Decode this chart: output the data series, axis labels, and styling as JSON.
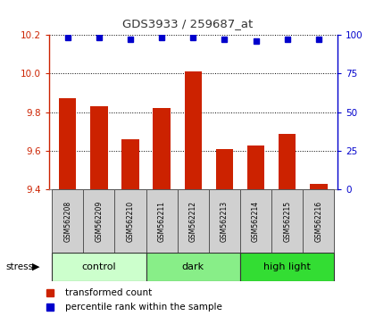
{
  "title": "GDS3933 / 259687_at",
  "categories": [
    "GSM562208",
    "GSM562209",
    "GSM562210",
    "GSM562211",
    "GSM562212",
    "GSM562213",
    "GSM562214",
    "GSM562215",
    "GSM562216"
  ],
  "bar_values": [
    9.87,
    9.83,
    9.66,
    9.82,
    10.01,
    9.61,
    9.63,
    9.69,
    9.43
  ],
  "percentile_values": [
    98,
    98,
    97,
    98,
    98,
    97,
    96,
    97,
    97
  ],
  "bar_color": "#cc2200",
  "dot_color": "#0000cc",
  "ylim_left": [
    9.4,
    10.2
  ],
  "ylim_right": [
    0,
    100
  ],
  "yticks_left": [
    9.4,
    9.6,
    9.8,
    10.0,
    10.2
  ],
  "yticks_right": [
    0,
    25,
    50,
    75,
    100
  ],
  "group_spans": [
    {
      "label": "control",
      "start": 0,
      "end": 2,
      "color": "#ccffcc"
    },
    {
      "label": "dark",
      "start": 3,
      "end": 5,
      "color": "#88ee88"
    },
    {
      "label": "high light",
      "start": 6,
      "end": 8,
      "color": "#33dd33"
    }
  ],
  "legend_items": [
    {
      "label": "transformed count",
      "color": "#cc2200"
    },
    {
      "label": "percentile rank within the sample",
      "color": "#0000cc"
    }
  ],
  "left_axis_color": "#cc2200",
  "right_axis_color": "#0000cc",
  "sample_band_color": "#d0d0d0",
  "sample_band_edge": "#555555"
}
